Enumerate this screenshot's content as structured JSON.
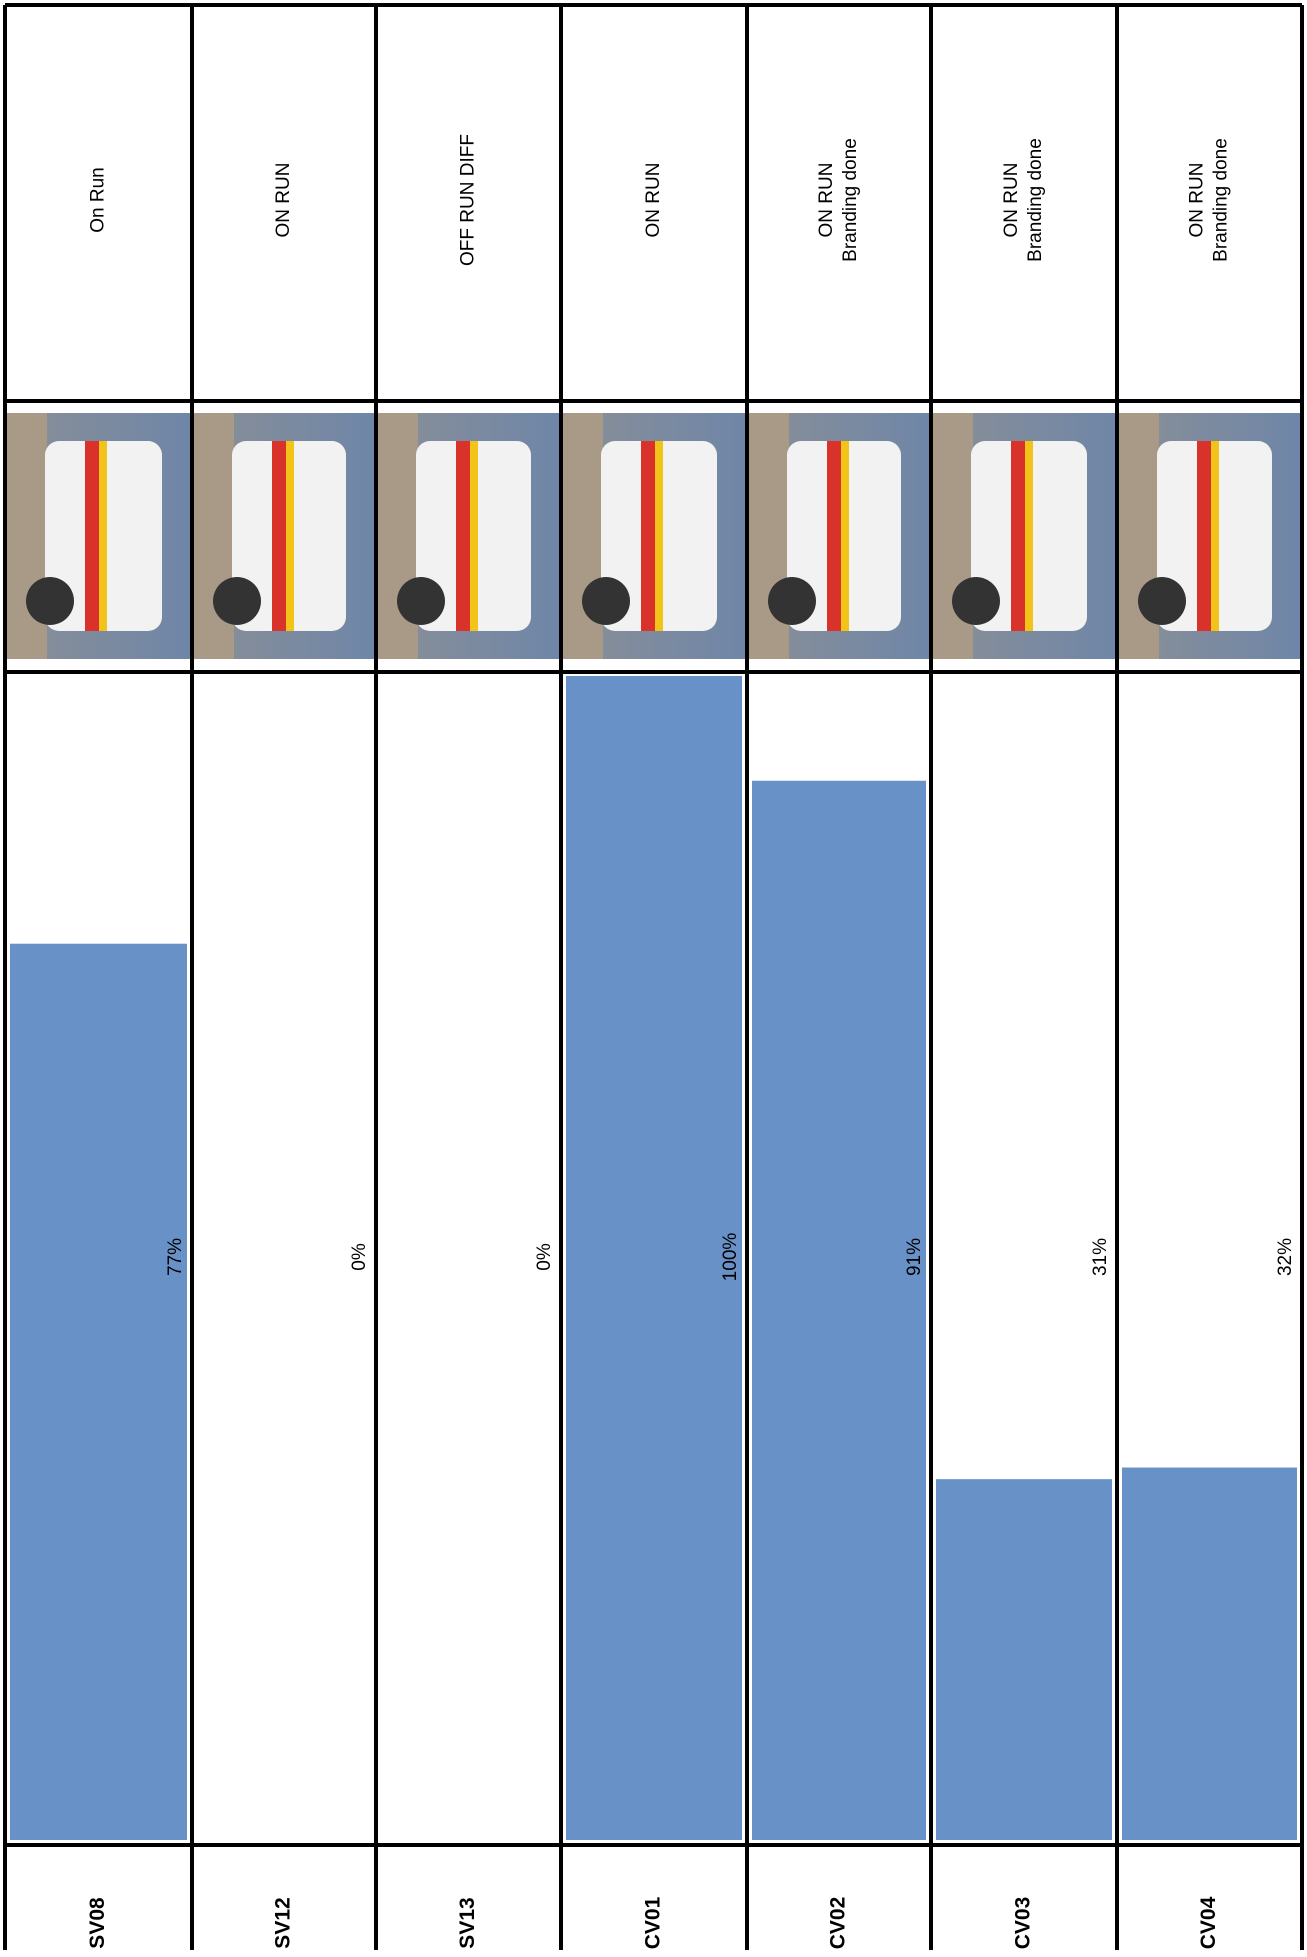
{
  "chart_data": {
    "type": "bar",
    "categories": [
      "SV08",
      "SV12",
      "SV13",
      "CV01",
      "CV02",
      "CV03",
      "CV04"
    ],
    "values": [
      77,
      0,
      0,
      100,
      91,
      31,
      32
    ],
    "value_labels": [
      "77%",
      "0%",
      "0%",
      "100%",
      "91%",
      "31%",
      "32%"
    ],
    "status": [
      [
        "On Run"
      ],
      [
        "ON RUN"
      ],
      [
        "OFF RUN DIFF"
      ],
      [
        "ON RUN"
      ],
      [
        "ON RUN",
        "Branding done"
      ],
      [
        "ON RUN",
        "Branding done"
      ],
      [
        "ON RUN",
        "Branding done"
      ]
    ],
    "color": "#6891c8"
  }
}
